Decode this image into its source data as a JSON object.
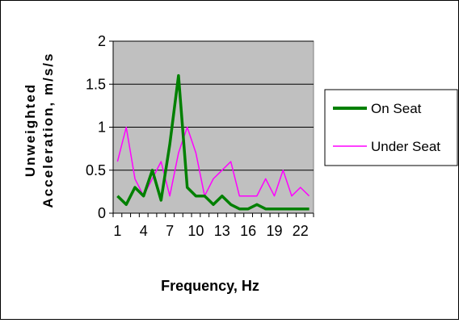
{
  "chart_data": {
    "type": "line",
    "xlabel": "Frequency, Hz",
    "ylabel": [
      "Unweighted",
      "Acceleration, m/s/s"
    ],
    "x": [
      1,
      2,
      3,
      4,
      5,
      6,
      7,
      8,
      9,
      10,
      11,
      12,
      13,
      14,
      15,
      16,
      17,
      18,
      19,
      20,
      21,
      22,
      23
    ],
    "x_tick_labels": [
      "1",
      "4",
      "7",
      "10",
      "13",
      "16",
      "19",
      "22"
    ],
    "y_tick_labels": [
      "0",
      "0.5",
      "1",
      "1.5",
      "2"
    ],
    "ylim": [
      0,
      2
    ],
    "grid": "horizontal",
    "plot_background": "#c0c0c0",
    "legend_position": "right",
    "series": [
      {
        "name": "On Seat",
        "color": "#008000",
        "values": [
          0.2,
          0.1,
          0.3,
          0.2,
          0.5,
          0.15,
          0.8,
          1.6,
          0.3,
          0.2,
          0.2,
          0.1,
          0.2,
          0.1,
          0.05,
          0.05,
          0.1,
          0.05,
          0.05,
          0.05,
          0.05,
          0.05,
          0.05
        ]
      },
      {
        "name": "Under Seat",
        "color": "#ff00ff",
        "values": [
          0.6,
          1.0,
          0.4,
          0.2,
          0.4,
          0.6,
          0.2,
          0.7,
          1.0,
          0.7,
          0.2,
          0.4,
          0.5,
          0.6,
          0.2,
          0.2,
          0.2,
          0.4,
          0.2,
          0.5,
          0.2,
          0.3,
          0.2
        ]
      }
    ]
  }
}
